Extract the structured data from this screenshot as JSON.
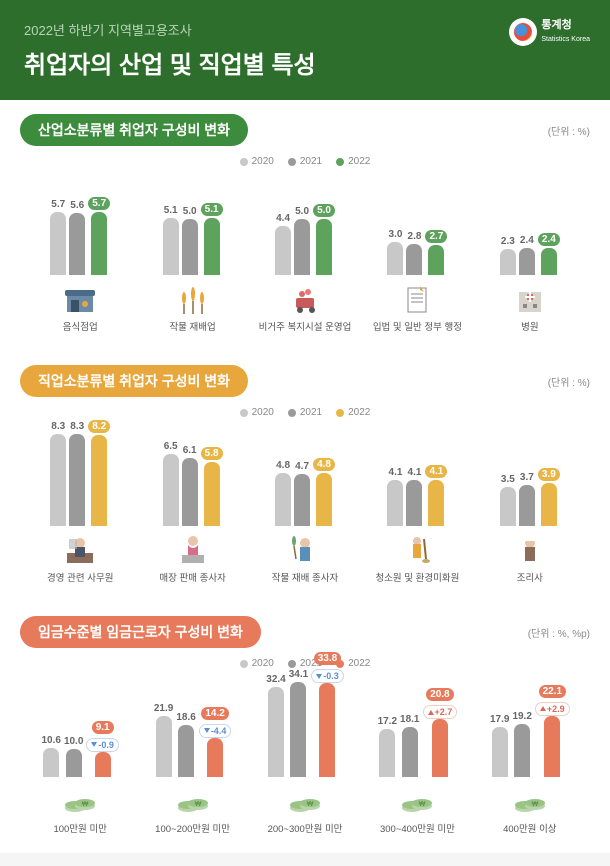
{
  "header": {
    "subtitle": "2022년 하반기 지역별고용조사",
    "title": "취업자의 산업 및 직업별 특성",
    "logo_name": "통계청",
    "logo_en": "Statistics Korea"
  },
  "legend_years": [
    "2020",
    "2021",
    "2022"
  ],
  "year_colors": [
    "#c8c8c8",
    "#9a9a9a",
    "%ACCENT%"
  ],
  "sections": [
    {
      "key": "s1",
      "title": "산업소분류별 취업자 구성비 변화",
      "title_class": "st-green",
      "unit": "(단위 : %)",
      "accent": "#5da35d",
      "max": 9,
      "groups": [
        {
          "label": "음식점업",
          "vals": [
            5.7,
            5.6,
            5.7
          ],
          "icon": "shop"
        },
        {
          "label": "작물 재배업",
          "vals": [
            5.1,
            5.0,
            5.1
          ],
          "icon": "wheat"
        },
        {
          "label": "비거주 복지시설 운영업",
          "vals": [
            4.4,
            5.0,
            5.0
          ],
          "icon": "cart"
        },
        {
          "label": "입법 및 일반 정부 행정",
          "vals": [
            3.0,
            2.8,
            2.7
          ],
          "icon": "doc"
        },
        {
          "label": "병원",
          "vals": [
            2.3,
            2.4,
            2.4
          ],
          "icon": "hospital"
        }
      ]
    },
    {
      "key": "s2",
      "title": "직업소분류별 취업자 구성비 변화",
      "title_class": "st-orange",
      "unit": "(단위 : %)",
      "accent": "#e8b547",
      "max": 9,
      "groups": [
        {
          "label": "경영 관련 사무원",
          "vals": [
            8.3,
            8.3,
            8.2
          ],
          "icon": "office"
        },
        {
          "label": "매장 판매 종사자",
          "vals": [
            6.5,
            6.1,
            5.8
          ],
          "icon": "sales"
        },
        {
          "label": "작물 재배 종사자",
          "vals": [
            4.8,
            4.7,
            4.8
          ],
          "icon": "farmer"
        },
        {
          "label": "청소원 및 환경미화원",
          "vals": [
            4.1,
            4.1,
            4.1
          ],
          "icon": "cleaner"
        },
        {
          "label": "조리사",
          "vals": [
            3.5,
            3.7,
            3.9
          ],
          "icon": "cook"
        }
      ]
    },
    {
      "key": "s3",
      "title": "임금수준별 임금근로자 구성비 변화",
      "title_class": "st-coral",
      "unit": "(단위 : %, %p)",
      "accent": "#e87a5c",
      "max": 36,
      "show_change": true,
      "groups": [
        {
          "label": "100만원 미만",
          "vals": [
            10.6,
            10.0,
            9.1
          ],
          "change": -0.9,
          "icon": "money"
        },
        {
          "label": "100~200만원 미만",
          "vals": [
            21.9,
            18.6,
            14.2
          ],
          "change": -4.4,
          "icon": "money"
        },
        {
          "label": "200~300만원 미만",
          "vals": [
            32.4,
            34.1,
            33.8
          ],
          "change": -0.3,
          "icon": "money"
        },
        {
          "label": "300~400만원 미만",
          "vals": [
            17.2,
            18.1,
            20.8
          ],
          "change": 2.7,
          "icon": "money"
        },
        {
          "label": "400만원 이상",
          "vals": [
            17.9,
            19.2,
            22.1
          ],
          "change": 2.9,
          "icon": "money"
        }
      ]
    }
  ]
}
